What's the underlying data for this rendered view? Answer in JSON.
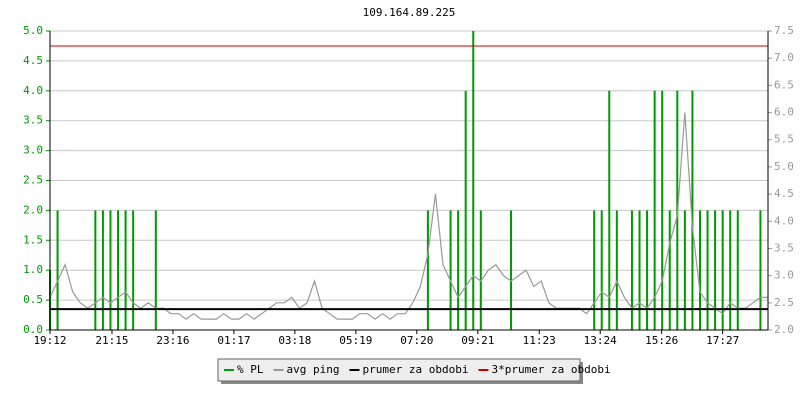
{
  "chart_data": {
    "type": "line",
    "title": "109.164.89.225",
    "x": [
      0,
      15,
      30,
      45,
      60,
      75,
      90,
      105,
      120,
      135,
      150,
      165,
      180,
      195,
      210,
      225,
      240,
      255,
      270,
      285,
      300,
      315,
      330,
      345,
      360,
      375,
      390,
      405,
      420,
      435,
      450,
      465,
      480,
      495,
      510,
      525,
      540,
      555,
      570,
      585,
      600,
      615,
      630,
      645,
      660,
      675,
      690,
      705,
      720,
      735,
      750,
      765,
      780,
      795,
      810,
      825,
      840,
      855,
      870,
      885,
      900,
      915,
      930,
      945,
      960,
      975,
      990,
      1005,
      1020,
      1035,
      1050,
      1065,
      1080,
      1095,
      1110,
      1125,
      1140,
      1155,
      1170,
      1185,
      1200,
      1215,
      1230,
      1245,
      1260,
      1275,
      1290,
      1305,
      1320,
      1335,
      1350,
      1365,
      1380,
      1395,
      1410,
      1425
    ],
    "xlim": [
      0,
      1425
    ],
    "xticks": [
      {
        "value": 0,
        "label": "19:12"
      },
      {
        "value": 123,
        "label": "21:15"
      },
      {
        "value": 244,
        "label": "23:16"
      },
      {
        "value": 365,
        "label": "01:17"
      },
      {
        "value": 486,
        "label": "03:18"
      },
      {
        "value": 607,
        "label": "05:19"
      },
      {
        "value": 728,
        "label": "07:20"
      },
      {
        "value": 849,
        "label": "09:21"
      },
      {
        "value": 971,
        "label": "11:23"
      },
      {
        "value": 1092,
        "label": "13:24"
      },
      {
        "value": 1214,
        "label": "15:26"
      },
      {
        "value": 1335,
        "label": "17:27"
      }
    ],
    "ylim": [
      0,
      5
    ],
    "yticks": [
      {
        "value": 0,
        "label": "0.0"
      },
      {
        "value": 0.5,
        "label": "0.5"
      },
      {
        "value": 1,
        "label": "1.0"
      },
      {
        "value": 1.5,
        "label": "1.5"
      },
      {
        "value": 2,
        "label": "2.0"
      },
      {
        "value": 2.5,
        "label": "2.5"
      },
      {
        "value": 3,
        "label": "3.0"
      },
      {
        "value": 3.5,
        "label": "3.5"
      },
      {
        "value": 4,
        "label": "4.0"
      },
      {
        "value": 4.5,
        "label": "4.5"
      },
      {
        "value": 5,
        "label": "5.0"
      }
    ],
    "y2lim": [
      2,
      7.5
    ],
    "y2ticks": [
      {
        "value": 2,
        "label": "2.0"
      },
      {
        "value": 2.5,
        "label": "2.5"
      },
      {
        "value": 3,
        "label": "3.0"
      },
      {
        "value": 3.5,
        "label": "3.5"
      },
      {
        "value": 4,
        "label": "4.0"
      },
      {
        "value": 4.5,
        "label": "4.5"
      },
      {
        "value": 5,
        "label": "5.0"
      },
      {
        "value": 5.5,
        "label": "5.5"
      },
      {
        "value": 6,
        "label": "6.0"
      },
      {
        "value": 6.5,
        "label": "6.5"
      },
      {
        "value": 7,
        "label": "7.0"
      },
      {
        "value": 7.5,
        "label": "7.5"
      }
    ],
    "grid": true,
    "series": [
      {
        "name": "% PL",
        "color": "#009900",
        "style": "spikes",
        "values": [
          1,
          2,
          0,
          0,
          0,
          0,
          2,
          2,
          2,
          2,
          2,
          2,
          0,
          0,
          2,
          0,
          0,
          0,
          0,
          0,
          0,
          0,
          0,
          0,
          0,
          0,
          0,
          0,
          0,
          0,
          0,
          0,
          0,
          0,
          0,
          0,
          0,
          0,
          0,
          0,
          0,
          0,
          0,
          0,
          0,
          0,
          0,
          0,
          0,
          0,
          2,
          0,
          0,
          2,
          2,
          4,
          5,
          2,
          0,
          0,
          0,
          2,
          0,
          0,
          0,
          0,
          0,
          0,
          0,
          0,
          0,
          0,
          2,
          2,
          4,
          2,
          0,
          2,
          2,
          2,
          4,
          4,
          2,
          4,
          2,
          4,
          2,
          2,
          2,
          2,
          2,
          2,
          0,
          0,
          2,
          0
        ]
      },
      {
        "name": "avg ping",
        "color": "#999999",
        "axis": "y2",
        "style": "line",
        "values": [
          2.6,
          2.9,
          3.2,
          2.7,
          2.5,
          2.4,
          2.5,
          2.6,
          2.5,
          2.6,
          2.7,
          2.5,
          2.4,
          2.5,
          2.4,
          2.4,
          2.3,
          2.3,
          2.2,
          2.3,
          2.2,
          2.2,
          2.2,
          2.3,
          2.2,
          2.2,
          2.3,
          2.2,
          2.3,
          2.4,
          2.5,
          2.5,
          2.6,
          2.4,
          2.5,
          2.9,
          2.4,
          2.3,
          2.2,
          2.2,
          2.2,
          2.3,
          2.3,
          2.2,
          2.3,
          2.2,
          2.3,
          2.3,
          2.5,
          2.8,
          3.4,
          4.5,
          3.2,
          2.9,
          2.6,
          2.8,
          3.0,
          2.9,
          3.1,
          3.2,
          3.0,
          2.9,
          3.0,
          3.1,
          2.8,
          2.9,
          2.5,
          2.4,
          2.4,
          2.4,
          2.4,
          2.3,
          2.5,
          2.7,
          2.6,
          2.9,
          2.6,
          2.4,
          2.5,
          2.4,
          2.6,
          2.9,
          3.6,
          4.1,
          6.0,
          3.9,
          2.7,
          2.5,
          2.4,
          2.3,
          2.5,
          2.4,
          2.4,
          2.5,
          2.6,
          2.6
        ]
      },
      {
        "name": "prumer za obdobi",
        "color": "#000000",
        "style": "hline",
        "value": 0.35
      },
      {
        "name": "3*prumer za obdobi",
        "color": "#cc0000",
        "style": "hline",
        "value": 4.75
      }
    ]
  }
}
